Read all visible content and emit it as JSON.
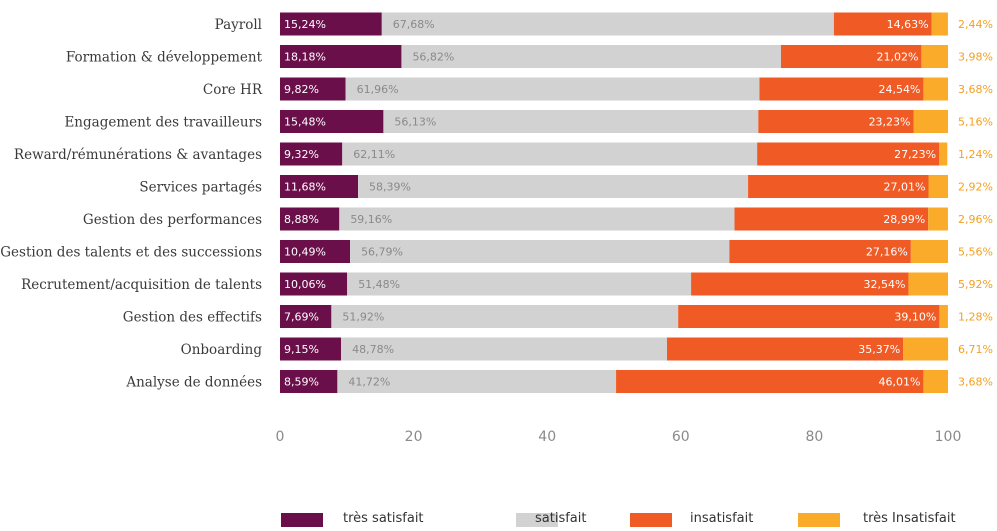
{
  "chart_data": {
    "type": "bar",
    "orientation": "horizontal",
    "stacked": true,
    "categories": [
      "Payroll",
      "Formation & développement",
      "Core HR",
      "Engagement des travailleurs",
      "Reward/rémunérations & avantages",
      "Services partagés",
      "Gestion des performances",
      "Gestion des talents et des successions",
      "Recrutement/acquisition de talents",
      "Gestion des effectifs",
      "Onboarding",
      "Analyse de données"
    ],
    "series": [
      {
        "name": "très satisfait",
        "color": "#6b0f4b",
        "values": [
          15.24,
          18.18,
          9.82,
          15.48,
          9.32,
          11.68,
          8.88,
          10.49,
          10.06,
          7.69,
          9.15,
          8.59
        ],
        "labels": [
          "15,24%",
          "18,18%",
          "9,82%",
          "15,48%",
          "9,32%",
          "11,68%",
          "8,88%",
          "10,49%",
          "10,06%",
          "7,69%",
          "9,15%",
          "8,59%"
        ]
      },
      {
        "name": "satisfait",
        "color": "#d3d2d2",
        "values": [
          67.68,
          56.82,
          61.96,
          56.13,
          62.11,
          58.39,
          59.16,
          56.79,
          51.48,
          51.92,
          48.78,
          41.72
        ],
        "labels": [
          "67,68%",
          "56,82%",
          "61,96%",
          "56,13%",
          "62,11%",
          "58,39%",
          "59,16%",
          "56,79%",
          "51,48%",
          "51,92%",
          "48,78%",
          "41,72%"
        ]
      },
      {
        "name": "insatisfait",
        "color": "#f05a24",
        "values": [
          14.63,
          21.02,
          24.54,
          23.23,
          27.23,
          27.01,
          28.99,
          27.16,
          32.54,
          39.1,
          35.37,
          46.01
        ],
        "labels": [
          "14,63%",
          "21,02%",
          "24,54%",
          "23,23%",
          "27,23%",
          "27,01%",
          "28,99%",
          "27,16%",
          "32,54%",
          "39,10%",
          "35,37%",
          "46,01%"
        ]
      },
      {
        "name": "très Insatisfait",
        "color": "#f9ab29",
        "values": [
          2.44,
          3.98,
          3.68,
          5.16,
          1.24,
          2.92,
          2.96,
          5.56,
          5.92,
          1.28,
          6.71,
          3.68
        ],
        "labels": [
          "2,44%",
          "3,98%",
          "3,68%",
          "5,16%",
          "1,24%",
          "2,92%",
          "2,96%",
          "5,56%",
          "5,92%",
          "1,28%",
          "6,71%",
          "3,68%"
        ]
      }
    ],
    "xlim": [
      0,
      100
    ],
    "xticks": [
      "0",
      "20",
      "40",
      "60",
      "80",
      "100"
    ],
    "xtick_values": [
      0,
      20,
      40,
      60,
      80,
      100
    ],
    "grid": false,
    "legend_position": "bottom",
    "label_colors": {
      "très satisfait": "#ffffff",
      "satisfait": "#8a8a8a",
      "insatisfait": "#ffffff",
      "très Insatisfait": "#f4a021"
    }
  }
}
